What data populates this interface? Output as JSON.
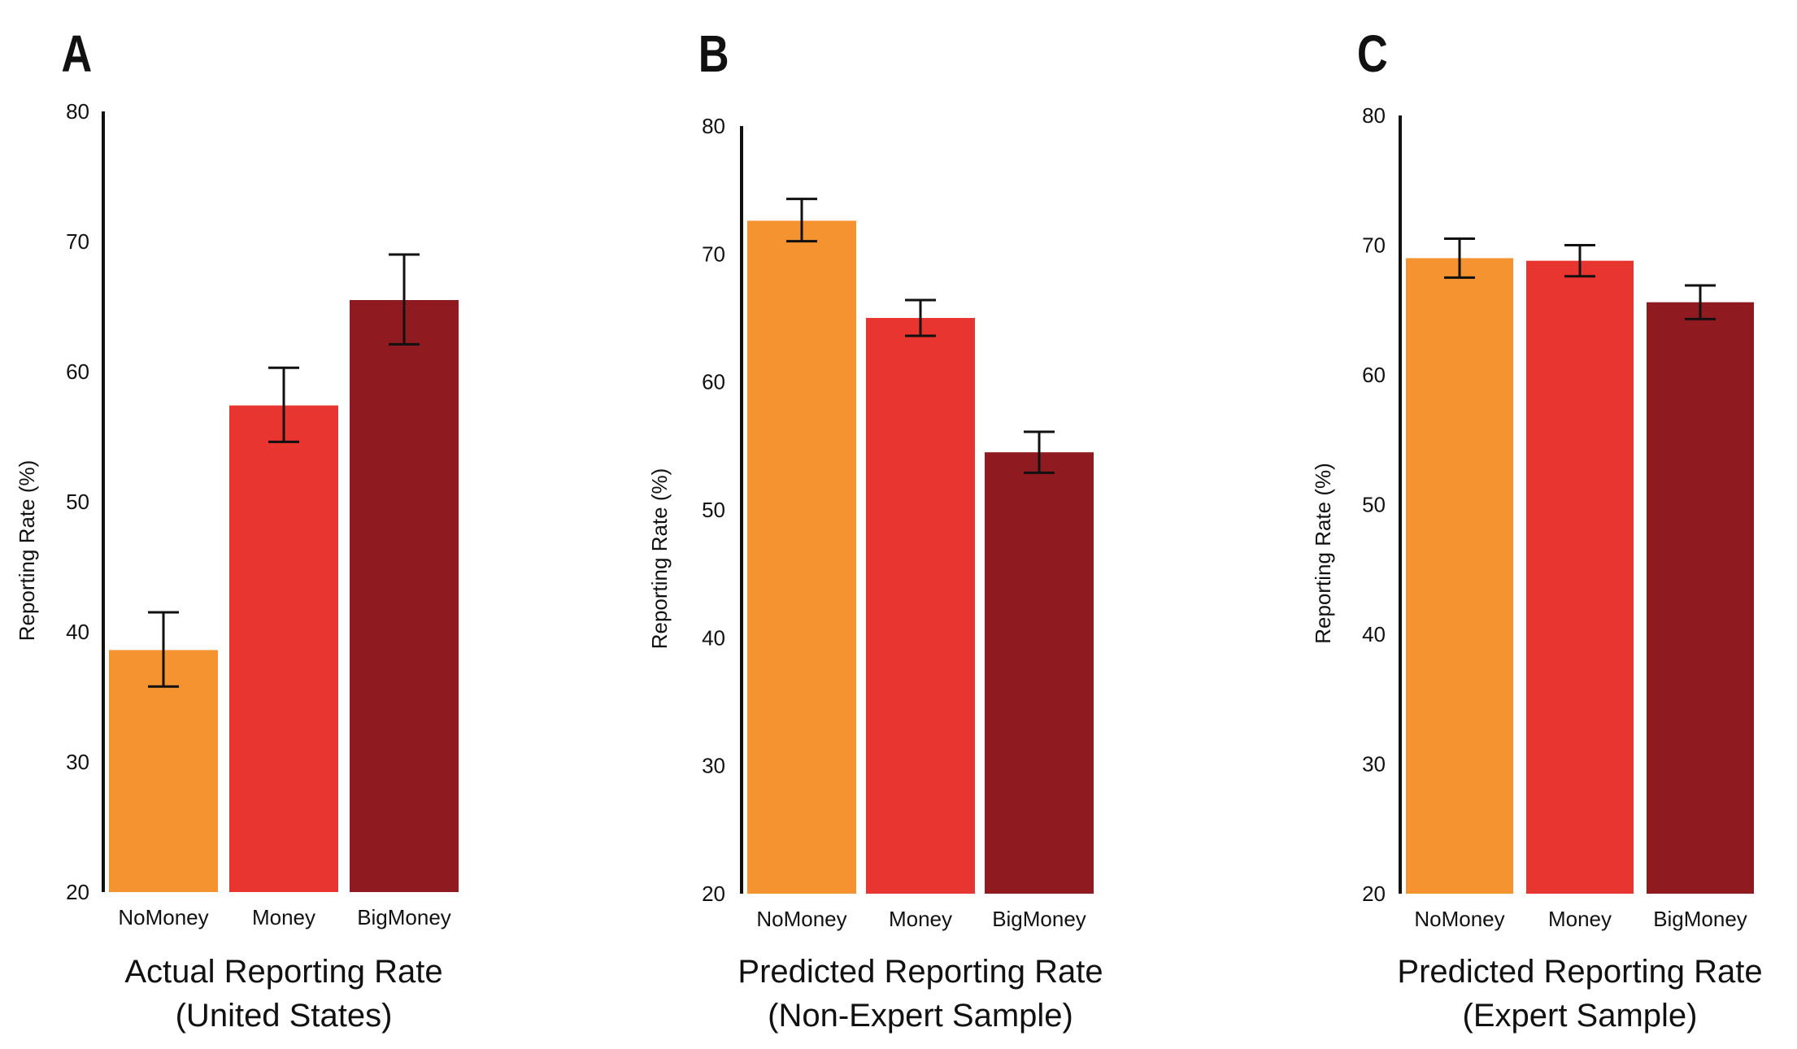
{
  "colors": {
    "NoMoney": "#f59331",
    "Money": "#e93530",
    "BigMoney": "#8f1b21"
  },
  "chart_data": [
    {
      "type": "bar",
      "panel": "A",
      "title": "Actual Reporting Rate",
      "subtitle": "(United States)",
      "xlabel": "Actual Reporting Rate (United States)",
      "ylabel": "Reporting Rate (%)",
      "ylim": [
        20,
        80
      ],
      "yticks": [
        20,
        30,
        40,
        50,
        60,
        70,
        80
      ],
      "grid": false,
      "categories": [
        "NoMoney",
        "Money",
        "BigMoney"
      ],
      "values": [
        38.6,
        57.4,
        65.5
      ],
      "error_low": [
        35.8,
        54.6,
        62.1
      ],
      "error_high": [
        41.5,
        60.3,
        69.0
      ]
    },
    {
      "type": "bar",
      "panel": "B",
      "title": "Predicted Reporting Rate",
      "subtitle": "(Non-Expert Sample)",
      "xlabel": "Predicted Reporting Rate (Non-Expert Sample)",
      "ylabel": "Reporting Rate (%)",
      "ylim": [
        20,
        80
      ],
      "yticks": [
        20,
        30,
        40,
        50,
        60,
        70,
        80
      ],
      "grid": false,
      "categories": [
        "NoMoney",
        "Money",
        "BigMoney"
      ],
      "values": [
        72.6,
        65.0,
        54.5
      ],
      "error_low": [
        71.0,
        63.6,
        52.9
      ],
      "error_high": [
        74.3,
        66.4,
        56.1
      ]
    },
    {
      "type": "bar",
      "panel": "C",
      "title": "Predicted Reporting Rate",
      "subtitle": "(Expert Sample)",
      "xlabel": "Predicted Reporting Rate (Expert Sample)",
      "ylabel": "Reporting Rate (%)",
      "ylim": [
        20,
        80
      ],
      "yticks": [
        20,
        30,
        40,
        50,
        60,
        70,
        80
      ],
      "grid": false,
      "categories": [
        "NoMoney",
        "Money",
        "BigMoney"
      ],
      "values": [
        69.0,
        68.8,
        65.6
      ],
      "error_low": [
        67.5,
        67.6,
        64.3
      ],
      "error_high": [
        70.5,
        70.0,
        66.9
      ]
    }
  ]
}
